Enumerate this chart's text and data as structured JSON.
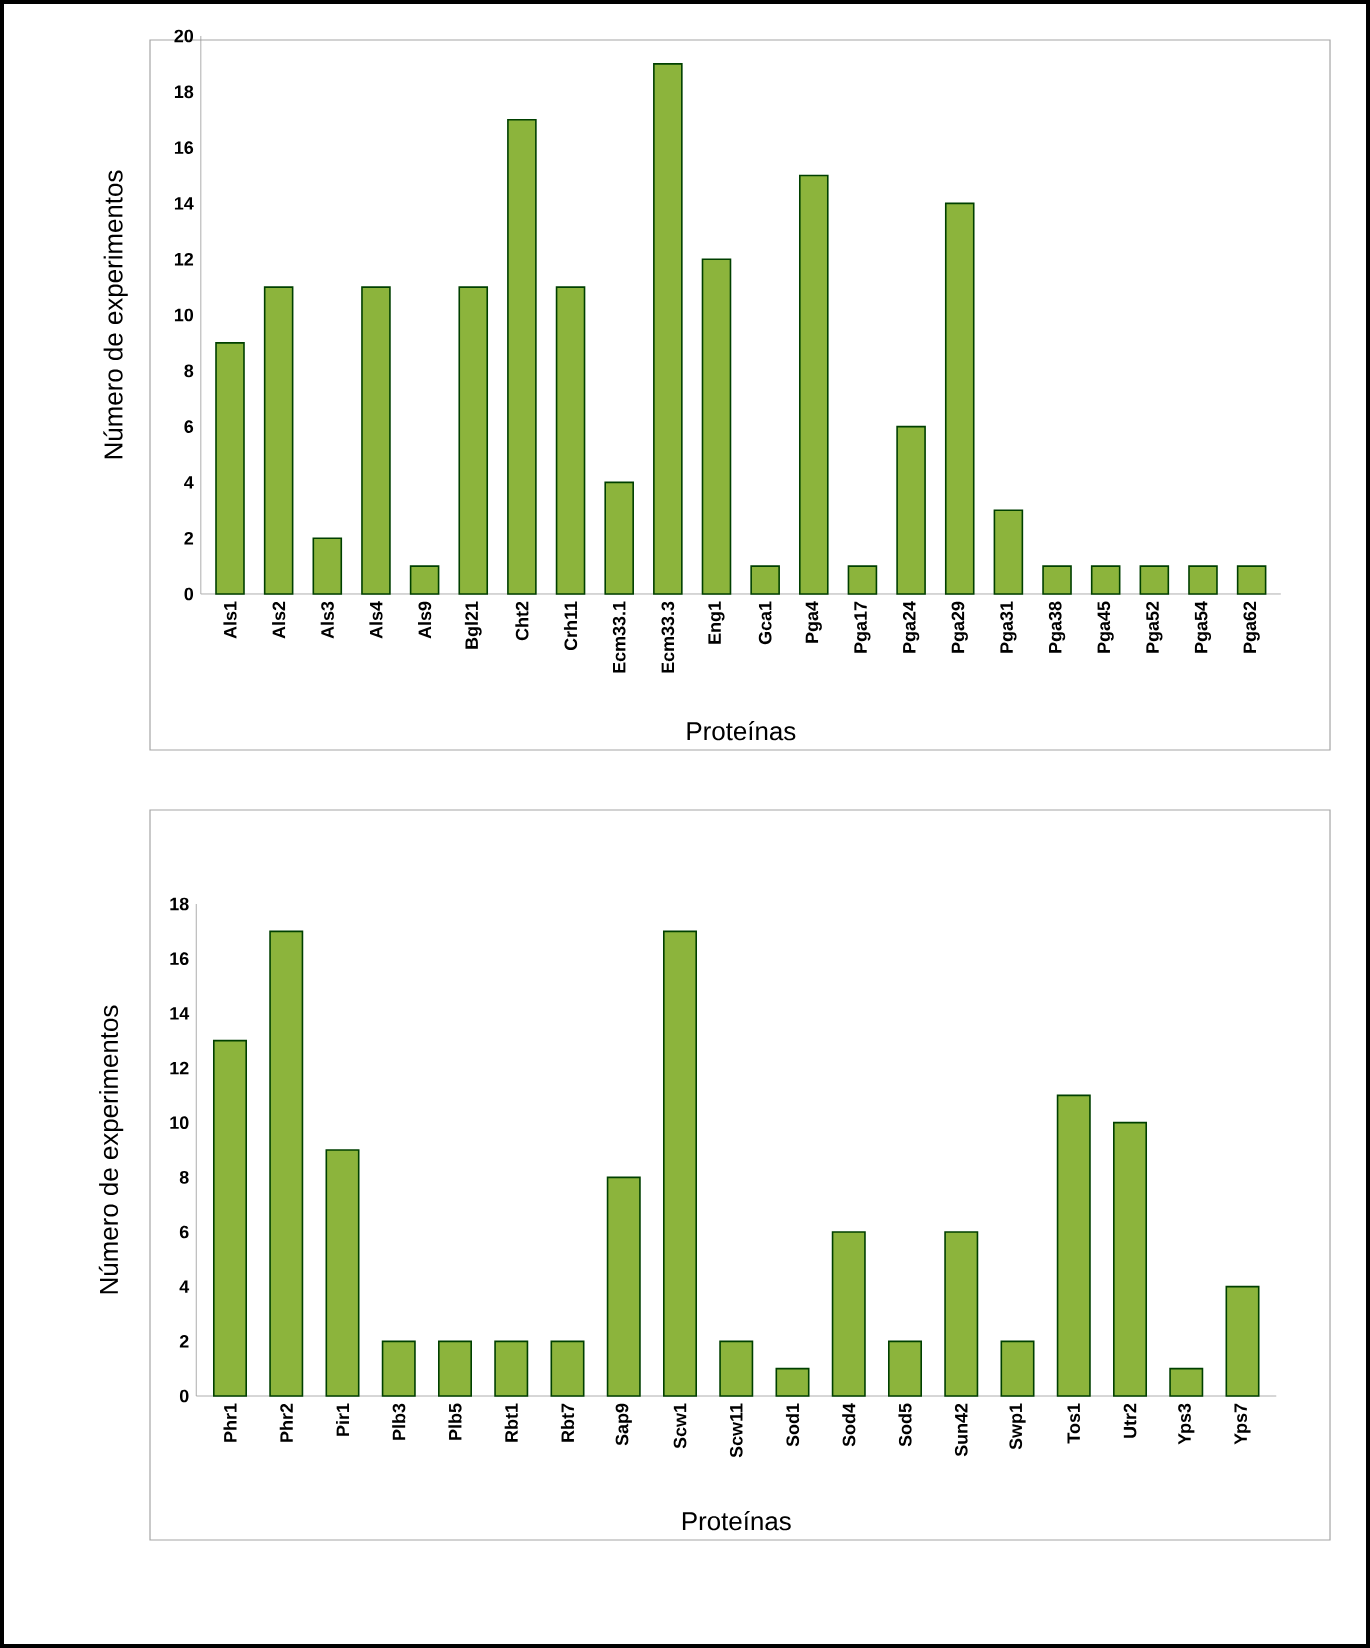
{
  "chart_data": [
    {
      "type": "bar",
      "xlabel": "Proteínas",
      "ylabel": "Número de experimentos",
      "categories": [
        "Als1",
        "Als2",
        "Als3",
        "Als4",
        "Als9",
        "Bgl21",
        "Cht2",
        "Crh11",
        "Ecm33.1",
        "Ecm33.3",
        "Eng1",
        "Gca1",
        "Pga4",
        "Pga17",
        "Pga24",
        "Pga29",
        "Pga31",
        "Pga38",
        "Pga45",
        "Pga52",
        "Pga54",
        "Pga62"
      ],
      "values": [
        9,
        11,
        2,
        11,
        1,
        11,
        17,
        11,
        4,
        19,
        12,
        1,
        15,
        1,
        6,
        14,
        3,
        1,
        1,
        1,
        1,
        1
      ],
      "color": "#8cb43c",
      "ylim": [
        0,
        20
      ],
      "yticks": [
        0,
        2,
        4,
        6,
        8,
        10,
        12,
        14,
        16,
        18,
        20
      ],
      "grid": false
    },
    {
      "type": "bar",
      "xlabel": "Proteínas",
      "ylabel": "Número de experimentos",
      "categories": [
        "Phr1",
        "Phr2",
        "Pir1",
        "Plb3",
        "Plb5",
        "Rbt1",
        "Rbt7",
        "Sap9",
        "Scw1",
        "Scw11",
        "Sod1",
        "Sod4",
        "Sod5",
        "Sun42",
        "Swp1",
        "Tos1",
        "Utr2",
        "Yps3",
        "Yps7"
      ],
      "values": [
        13,
        17,
        9,
        2,
        2,
        2,
        2,
        8,
        17,
        2,
        1,
        6,
        2,
        6,
        2,
        11,
        10,
        1,
        4
      ],
      "color": "#8cb43c",
      "ylim": [
        0,
        18
      ],
      "yticks": [
        0,
        2,
        4,
        6,
        8,
        10,
        12,
        14,
        16,
        18
      ],
      "grid": false
    }
  ]
}
